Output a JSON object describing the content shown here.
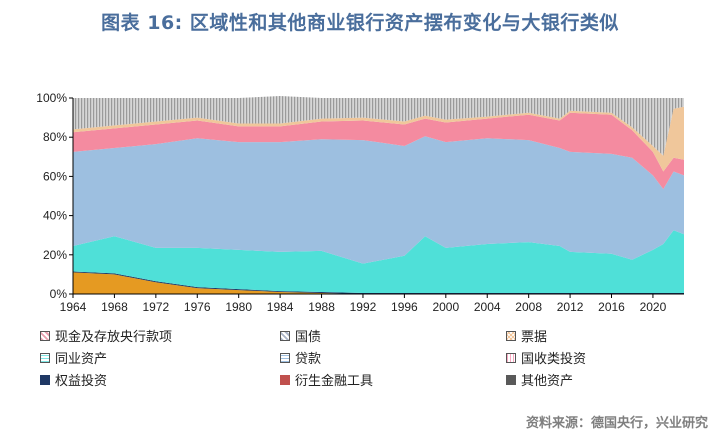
{
  "title": "图表 16: 区域性和其他商业银行资产摆布变化与大银行类似",
  "source": "资料来源：德国央行，兴业研究",
  "legend": [
    {
      "label": "现金及存放央行款项",
      "color": "#e8a0b0",
      "pattern": "hatch"
    },
    {
      "label": "国债",
      "color": "#aab4c8",
      "pattern": "hatch"
    },
    {
      "label": "票据",
      "color": "#f3c69a",
      "pattern": "cross"
    },
    {
      "label": "同业资产",
      "color": "#7ee6e4",
      "pattern": "dots"
    },
    {
      "label": "贷款",
      "color": "#9dbfe0",
      "pattern": "dots"
    },
    {
      "label": "国收类投资",
      "color": "#f7a8c0",
      "pattern": "vline"
    },
    {
      "label": "权益投资",
      "color": "#1f3864",
      "pattern": "solid"
    },
    {
      "label": "衍生金融工具",
      "color": "#c0504d",
      "pattern": "solid"
    },
    {
      "label": "其他资产",
      "color": "#595959",
      "pattern": "solid"
    }
  ],
  "chart_data": {
    "type": "area",
    "stacked": true,
    "x": [
      1964,
      1968,
      1972,
      1976,
      1980,
      1984,
      1988,
      1992,
      1996,
      1998,
      2000,
      2004,
      2008,
      2011,
      2012,
      2016,
      2018,
      2020,
      2021,
      2022,
      2023
    ],
    "xticks": [
      "1964",
      "1968",
      "1972",
      "1976",
      "1980",
      "1984",
      "1988",
      "1992",
      "1996",
      "2000",
      "2004",
      "2008",
      "2012",
      "2016",
      "2020"
    ],
    "yticks": [
      "0%",
      "20%",
      "40%",
      "60%",
      "80%",
      "100%"
    ],
    "ylim": [
      0,
      100
    ],
    "grid": false,
    "legend_position": "bottom",
    "series": [
      {
        "name": "衍生金融工具",
        "color": "#e59a22",
        "values": [
          11,
          10,
          6,
          3,
          2,
          1,
          0.5,
          0,
          0,
          0,
          0,
          0,
          0,
          0,
          0,
          0,
          0,
          0,
          0,
          0,
          0
        ]
      },
      {
        "name": "权益投资",
        "color": "#1f3864",
        "values": [
          0.5,
          0.5,
          0.5,
          0.5,
          0.5,
          0.5,
          0.5,
          0.5,
          0.5,
          0.5,
          0.5,
          0.5,
          0.5,
          0.5,
          0.5,
          0.5,
          0.5,
          0.5,
          0.5,
          0.5,
          0.5
        ]
      },
      {
        "name": "同业资产",
        "color": "#4fe0d8",
        "values": [
          13,
          19,
          17,
          20,
          20,
          20,
          21,
          15,
          19,
          29,
          23,
          25,
          26,
          24,
          21,
          20,
          17,
          22,
          25,
          32,
          30
        ]
      },
      {
        "name": "贷款",
        "color": "#9dbfe0",
        "values": [
          48,
          45,
          53,
          56,
          55,
          56,
          57,
          63,
          56,
          51,
          54,
          54,
          52,
          50,
          51,
          51,
          52,
          38,
          28,
          30,
          30
        ]
      },
      {
        "name": "现金及存放央行款项",
        "color": "#f48ba0",
        "values": [
          10,
          10,
          10,
          9,
          8,
          8,
          9,
          10,
          11,
          9,
          10,
          10,
          13,
          14,
          20,
          20,
          14,
          12,
          9,
          7,
          8
        ]
      },
      {
        "name": "票据",
        "color": "#f0c79b",
        "values": [
          1.5,
          1.5,
          1.5,
          1.5,
          1.5,
          1.5,
          1.5,
          1.5,
          1.5,
          1.5,
          1.5,
          1,
          1,
          1,
          1,
          1,
          1.5,
          3,
          8,
          25,
          27
        ]
      },
      {
        "name": "其他资产",
        "color": "#c0c0c0",
        "values": [
          16,
          14,
          12,
          10,
          13,
          14,
          10.5,
          10,
          12,
          9,
          11,
          9.5,
          7.5,
          10.5,
          6.5,
          7.5,
          15,
          24.5,
          29.5,
          5.5,
          4.5
        ]
      }
    ]
  }
}
